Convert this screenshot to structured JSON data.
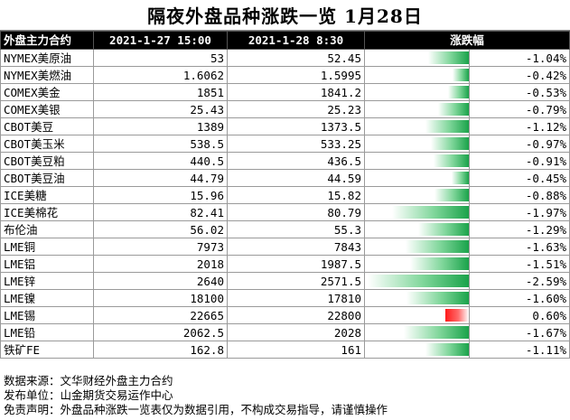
{
  "title": "隔夜外盘品种涨跌一览 1月28日",
  "header": {
    "col_contract": "外盘主力合约",
    "col_prev": "2021-1-27 15:00",
    "col_curr": "2021-1-28 8:30",
    "col_change": "涨跌幅"
  },
  "rows": [
    {
      "name": "NYMEX美原油",
      "prev": "53",
      "curr": "52.45",
      "pct": "-1.04%"
    },
    {
      "name": "NYMEX美燃油",
      "prev": "1.6062",
      "curr": "1.5995",
      "pct": "-0.42%"
    },
    {
      "name": "COMEX美金",
      "prev": "1851",
      "curr": "1841.2",
      "pct": "-0.53%"
    },
    {
      "name": "COMEX美银",
      "prev": "25.43",
      "curr": "25.23",
      "pct": "-0.79%"
    },
    {
      "name": "CBOT美豆",
      "prev": "1389",
      "curr": "1373.5",
      "pct": "-1.12%"
    },
    {
      "name": "CBOT美玉米",
      "prev": "538.5",
      "curr": "533.25",
      "pct": "-0.97%"
    },
    {
      "name": "CBOT美豆粕",
      "prev": "440.5",
      "curr": "436.5",
      "pct": "-0.91%"
    },
    {
      "name": "CBOT美豆油",
      "prev": "44.79",
      "curr": "44.59",
      "pct": "-0.45%"
    },
    {
      "name": "ICE美糖",
      "prev": "15.96",
      "curr": "15.82",
      "pct": "-0.88%"
    },
    {
      "name": "ICE美棉花",
      "prev": "82.41",
      "curr": "80.79",
      "pct": "-1.97%"
    },
    {
      "name": "布伦油",
      "prev": "56.02",
      "curr": "55.3",
      "pct": "-1.29%"
    },
    {
      "name": "LME铜",
      "prev": "7973",
      "curr": "7843",
      "pct": "-1.63%"
    },
    {
      "name": "LME铝",
      "prev": "2018",
      "curr": "1987.5",
      "pct": "-1.51%"
    },
    {
      "name": "LME锌",
      "prev": "2640",
      "curr": "2571.5",
      "pct": "-2.59%"
    },
    {
      "name": "LME镍",
      "prev": "18100",
      "curr": "17810",
      "pct": "-1.60%"
    },
    {
      "name": "LME锡",
      "prev": "22665",
      "curr": "22800",
      "pct": "0.60%"
    },
    {
      "name": "LME铅",
      "prev": "2062.5",
      "curr": "2028",
      "pct": "-1.67%"
    },
    {
      "name": "铁矿FE",
      "prev": "162.8",
      "curr": "161",
      "pct": "-1.11%"
    }
  ],
  "bar_scale": {
    "min_pct": -2.59,
    "max_pct": 2.59
  },
  "colors": {
    "negative": "#1aa34a",
    "positive": "#ff1a1a"
  },
  "footer": {
    "source": "数据来源：文华财经外盘主力合约",
    "publisher": "发布单位：山金期货交易运作中心",
    "disclaimer": "免责声明：外盘品种涨跌一览表仅为数据引用，不构成交易指导，请谨慎操作"
  }
}
